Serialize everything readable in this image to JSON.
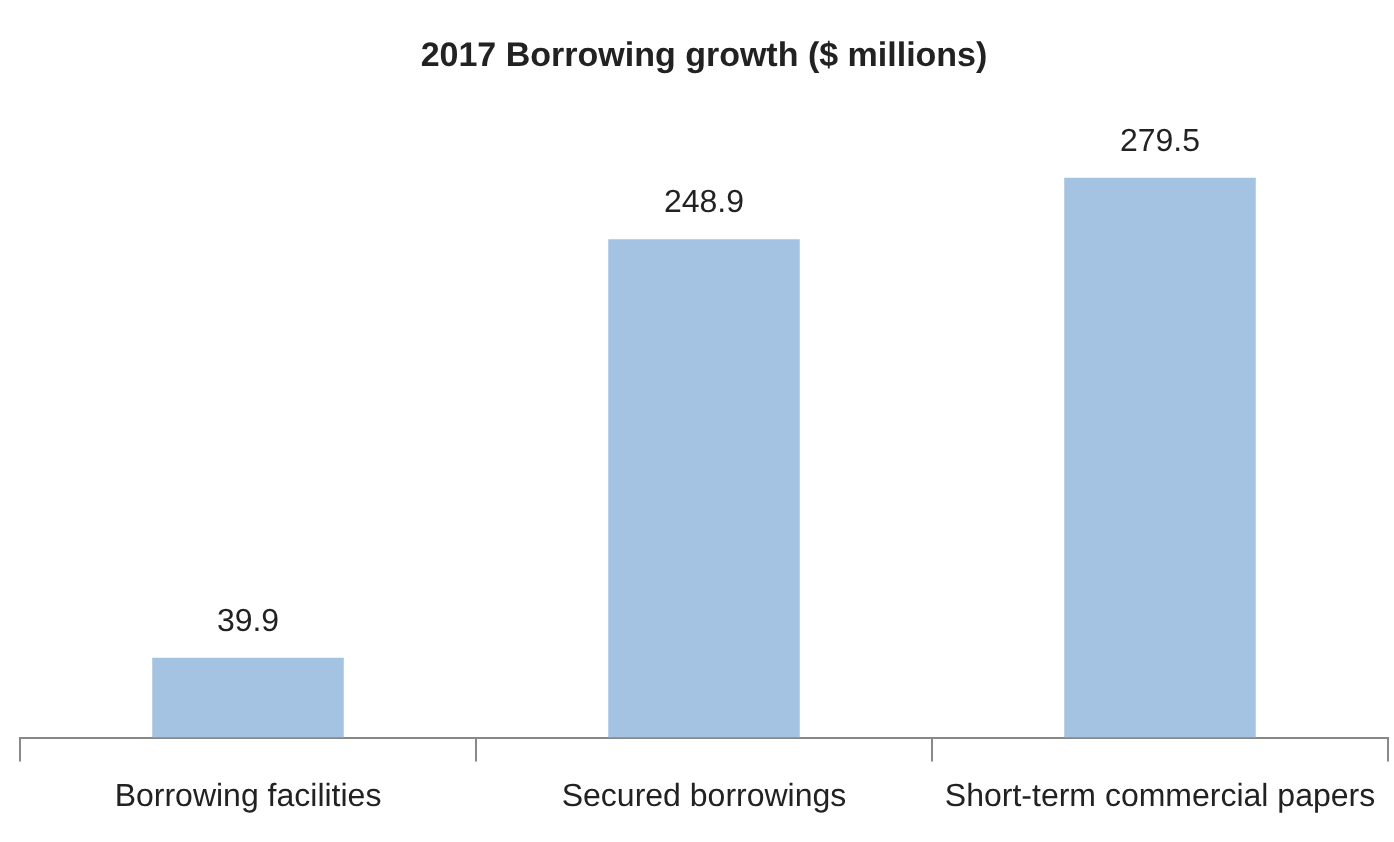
{
  "chart_data": {
    "type": "bar",
    "title": "2017 Borrowing growth ($ millions)",
    "categories": [
      "Borrowing facilities",
      "Secured borrowings",
      "Short-term commercial papers"
    ],
    "values": [
      39.9,
      248.9,
      279.5
    ],
    "color": "#a4c2e2",
    "data_labels": true
  }
}
